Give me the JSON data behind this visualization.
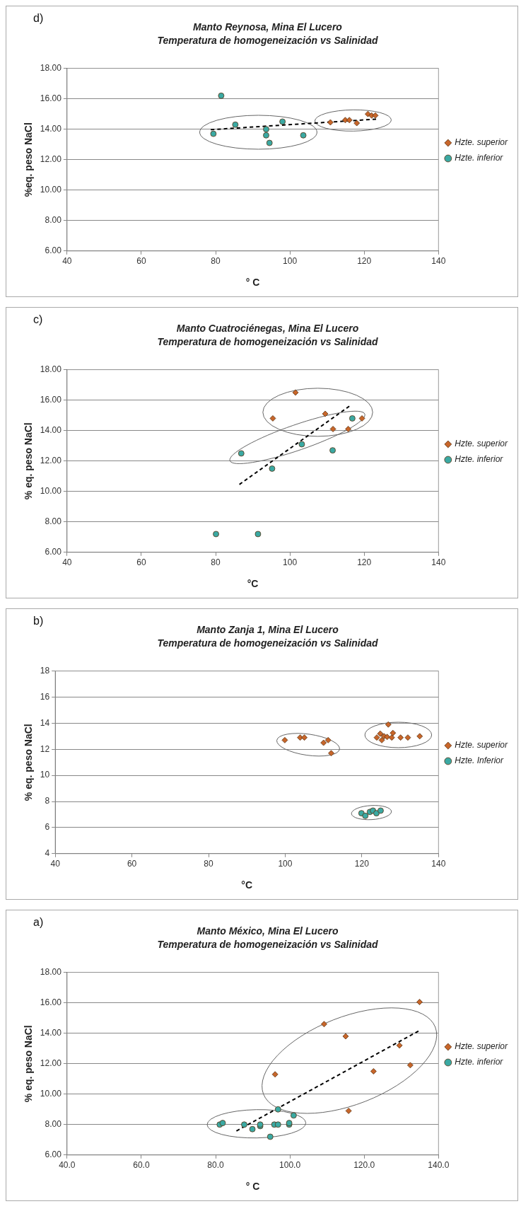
{
  "chart_data": [
    {
      "type": "scatter",
      "title": "Manto Reynosa, Mina El Lucero",
      "subtitle": "Temperatura de homogeneización vs Salinidad",
      "xlabel": "° C",
      "ylabel": "%eq. peso NaCl",
      "annotations": [
        "d)"
      ],
      "xlim": [
        40,
        140
      ],
      "xticks": [
        40,
        60,
        80,
        100,
        120,
        140
      ],
      "ylim": [
        6,
        18
      ],
      "yticks": [
        {
          "value": 6,
          "label": "6.00"
        },
        {
          "value": 8,
          "label": "8.00"
        },
        {
          "value": 10,
          "label": "10.00"
        },
        {
          "value": 12,
          "label": "12.00"
        },
        {
          "value": 14,
          "label": "14.00"
        },
        {
          "value": 16,
          "label": "16.00"
        },
        {
          "value": 18,
          "label": "18.00"
        }
      ],
      "grid": "y",
      "legend": "right",
      "series": [
        {
          "name": "Hzte. superior",
          "color": "#c8662a",
          "marker": "diamond",
          "x": [
            110.9,
            114.9,
            116.0,
            118.0,
            121.0,
            122.0,
            123.0
          ],
          "values": [
            14.45,
            14.6,
            14.6,
            14.4,
            15.0,
            14.9,
            14.9
          ]
        },
        {
          "name": "Hzte. inferior",
          "color": "#3aa9a3",
          "marker": "circle",
          "x": [
            79.4,
            81.5,
            85.3,
            93.6,
            93.6,
            94.5,
            98.0,
            103.6
          ],
          "values": [
            13.7,
            16.2,
            14.3,
            14.0,
            13.6,
            13.1,
            14.5,
            13.6
          ]
        },
        {
          "type": "line",
          "color": "#000000",
          "marker": "none",
          "line_style": "dashed",
          "x": [
            78.7,
            123.2
          ],
          "values": [
            13.97,
            14.66
          ]
        }
      ]
    },
    {
      "type": "scatter",
      "title": "Manto Cuatrociénegas, Mina El Lucero",
      "subtitle": "Temperatura de homogeneización vs Salinidad",
      "xlabel": "°C",
      "ylabel": "% eq. peso NaCl",
      "annotations": [
        "c)"
      ],
      "xlim": [
        40,
        140
      ],
      "xticks": [
        40,
        60,
        80,
        100,
        120,
        140
      ],
      "ylim": [
        6,
        18
      ],
      "yticks": [
        {
          "value": 6,
          "label": "6.00"
        },
        {
          "value": 8,
          "label": "8.00"
        },
        {
          "value": 10,
          "label": "10.00"
        },
        {
          "value": 12,
          "label": "12.00"
        },
        {
          "value": 14,
          "label": "14.00"
        },
        {
          "value": 16,
          "label": "16.00"
        },
        {
          "value": 18,
          "label": "18.00"
        }
      ],
      "grid": "y",
      "legend": "right",
      "series": [
        {
          "name": "Hzte. superior",
          "color": "#c8662a",
          "marker": "diamond",
          "x": [
            101.5,
            95.4,
            109.5,
            111.6,
            115.7,
            119.4
          ],
          "values": [
            16.5,
            14.8,
            15.1,
            14.1,
            14.1,
            14.8
          ]
        },
        {
          "name": "Hzte. inferior",
          "color": "#3aa9a3",
          "marker": "circle",
          "x": [
            86.9,
            95.2,
            103.2,
            111.5,
            116.8,
            80.1,
            91.4
          ],
          "values": [
            12.5,
            11.5,
            13.1,
            12.7,
            14.8,
            7.2,
            7.2
          ]
        },
        {
          "type": "line",
          "color": "#000000",
          "marker": "none",
          "line_style": "dashed",
          "x": [
            86.4,
            116.0
          ],
          "values": [
            10.46,
            15.6
          ]
        }
      ]
    },
    {
      "type": "scatter",
      "title": "Manto Zanja 1, Mina El Lucero",
      "subtitle": "Temperatura de homogeneización vs Salinidad",
      "xlabel": "°C",
      "ylabel": "% eq. peso NaCl",
      "annotations": [
        "b)"
      ],
      "xlim": [
        40,
        140
      ],
      "xticks": [
        40,
        60,
        80,
        100,
        120,
        140
      ],
      "ylim": [
        4,
        18
      ],
      "yticks": [
        4,
        6,
        8,
        10,
        12,
        14,
        16,
        18
      ],
      "grid": "y",
      "legend": "right",
      "series": [
        {
          "name": "Hzte. superior",
          "color": "#c8662a",
          "marker": "diamond",
          "x": [
            99.9,
            103.9,
            105.0,
            110.0,
            111.2,
            112.0,
            126.9,
            123.9,
            124.8,
            125.2,
            125.8,
            126.6,
            127.8,
            128.1,
            130.1,
            132.0,
            135.1
          ],
          "values": [
            12.7,
            12.9,
            12.9,
            12.5,
            12.7,
            11.7,
            13.9,
            12.9,
            13.2,
            12.7,
            13.0,
            12.95,
            12.9,
            13.25,
            12.9,
            12.9,
            13.0
          ]
        },
        {
          "name": "Hzte. Inferior",
          "color": "#3aa9a3",
          "marker": "circle",
          "x": [
            119.9,
            120.9,
            122.1,
            122.9,
            123.8,
            124.9
          ],
          "values": [
            7.1,
            6.9,
            7.2,
            7.3,
            7.1,
            7.3
          ]
        }
      ]
    },
    {
      "type": "scatter",
      "title": "Manto México, Mina El Lucero",
      "subtitle": "Temperatura de homogeneización vs Salinidad",
      "xlabel": "° C",
      "ylabel": "% eq. peso NaCl",
      "annotations": [
        "a)"
      ],
      "xlim": [
        40,
        140
      ],
      "xticks": [
        {
          "value": 40,
          "label": "40.0"
        },
        {
          "value": 60,
          "label": "60.0"
        },
        {
          "value": 80,
          "label": "80.0"
        },
        {
          "value": 100,
          "label": "100.0"
        },
        {
          "value": 120,
          "label": "120.0"
        },
        {
          "value": 140,
          "label": "140.0"
        }
      ],
      "ylim": [
        6,
        18
      ],
      "yticks": [
        {
          "value": 6,
          "label": "6.00"
        },
        {
          "value": 8,
          "label": "8.00"
        },
        {
          "value": 10,
          "label": "10.00"
        },
        {
          "value": 12,
          "label": "12.00"
        },
        {
          "value": 14,
          "label": "14.00"
        },
        {
          "value": 16,
          "label": "16.00"
        },
        {
          "value": 18,
          "label": "18.00"
        }
      ],
      "grid": "y",
      "legend": "right",
      "series": [
        {
          "name": "Hzte. superior",
          "color": "#c8662a",
          "marker": "diamond",
          "x": [
            96.0,
            109.2,
            115.0,
            115.8,
            122.5,
            129.5,
            132.4,
            134.9
          ],
          "values": [
            11.3,
            14.6,
            13.8,
            8.9,
            11.5,
            13.2,
            11.9,
            16.05
          ]
        },
        {
          "name": "Hzte. inferior",
          "color": "#3aa9a3",
          "marker": "circle",
          "x": [
            81.1,
            81.9,
            87.7,
            89.9,
            92.0,
            92.0,
            94.7,
            95.8,
            96.8,
            96.8,
            99.8,
            99.8,
            101.0
          ],
          "values": [
            8.0,
            8.1,
            8.0,
            7.7,
            7.9,
            8.0,
            7.2,
            8.0,
            8.0,
            9.0,
            8.0,
            8.1,
            8.6
          ]
        },
        {
          "type": "line",
          "color": "#000000",
          "marker": "none",
          "line_style": "dashed",
          "x": [
            85.6,
            134.6
          ],
          "values": [
            7.58,
            14.14
          ]
        }
      ]
    }
  ]
}
